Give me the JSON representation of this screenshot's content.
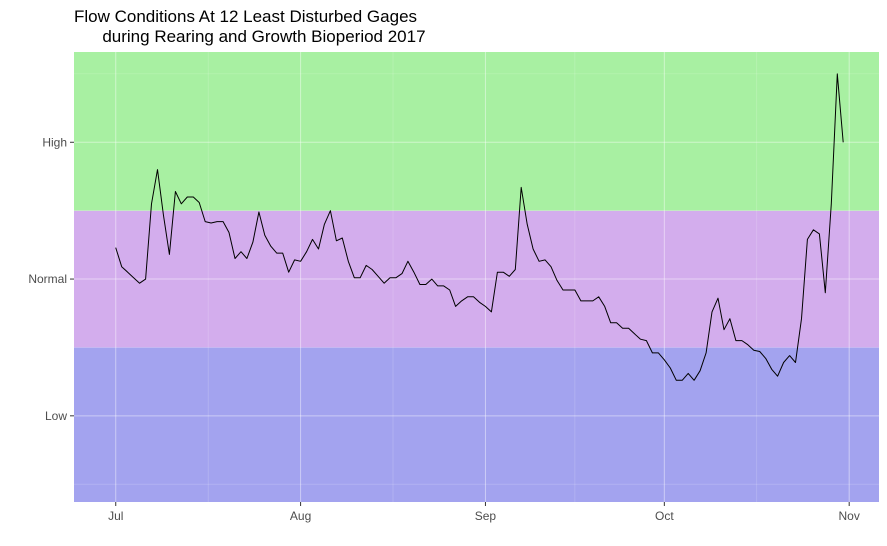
{
  "chart_data": {
    "type": "line",
    "title": "Flow Conditions At 12 Least Disturbed Gages\n      during Rearing and Growth Bioperiod 2017",
    "xlabel": "",
    "ylabel": "",
    "x_ticks": [
      {
        "date": "2017-07-01",
        "label": "Jul"
      },
      {
        "date": "2017-08-01",
        "label": "Aug"
      },
      {
        "date": "2017-09-01",
        "label": "Sep"
      },
      {
        "date": "2017-10-01",
        "label": "Oct"
      },
      {
        "date": "2017-11-01",
        "label": "Nov"
      }
    ],
    "xlim": [
      "2017-06-24",
      "2017-11-06"
    ],
    "y_ticks": [
      {
        "value": 1,
        "label": "Low"
      },
      {
        "value": 2,
        "label": "Normal"
      },
      {
        "value": 3,
        "label": "High"
      }
    ],
    "ylim": [
      0.37,
      3.66
    ],
    "bands": [
      {
        "name": "Low",
        "from": 0.37,
        "to": 1.5,
        "color": "#a3a3ef"
      },
      {
        "name": "Normal",
        "from": 1.5,
        "to": 2.5,
        "color": "#d3aded"
      },
      {
        "name": "High",
        "from": 2.5,
        "to": 3.66,
        "color": "#a8f0a2"
      }
    ],
    "grid": true,
    "line_color": "#000000",
    "series": [
      {
        "x": [
          "2017-07-01",
          "2017-07-02",
          "2017-07-03",
          "2017-07-04",
          "2017-07-05",
          "2017-07-06",
          "2017-07-07",
          "2017-07-08",
          "2017-07-09",
          "2017-07-10",
          "2017-07-11",
          "2017-07-12",
          "2017-07-13",
          "2017-07-14",
          "2017-07-15",
          "2017-07-16",
          "2017-07-17",
          "2017-07-18",
          "2017-07-19",
          "2017-07-20",
          "2017-07-21",
          "2017-07-22",
          "2017-07-23",
          "2017-07-24",
          "2017-07-25",
          "2017-07-26",
          "2017-07-27",
          "2017-07-28",
          "2017-07-29",
          "2017-07-30",
          "2017-07-31",
          "2017-08-01",
          "2017-08-02",
          "2017-08-03",
          "2017-08-04",
          "2017-08-05",
          "2017-08-06",
          "2017-08-07",
          "2017-08-08",
          "2017-08-09",
          "2017-08-10",
          "2017-08-11",
          "2017-08-12",
          "2017-08-13",
          "2017-08-14",
          "2017-08-15",
          "2017-08-16",
          "2017-08-17",
          "2017-08-18",
          "2017-08-19",
          "2017-08-20",
          "2017-08-21",
          "2017-08-22",
          "2017-08-23",
          "2017-08-24",
          "2017-08-25",
          "2017-08-26",
          "2017-08-27",
          "2017-08-28",
          "2017-08-29",
          "2017-08-30",
          "2017-08-31",
          "2017-09-01",
          "2017-09-02",
          "2017-09-03",
          "2017-09-04",
          "2017-09-05",
          "2017-09-06",
          "2017-09-07",
          "2017-09-08",
          "2017-09-09",
          "2017-09-10",
          "2017-09-11",
          "2017-09-12",
          "2017-09-13",
          "2017-09-14",
          "2017-09-15",
          "2017-09-16",
          "2017-09-17",
          "2017-09-18",
          "2017-09-19",
          "2017-09-20",
          "2017-09-21",
          "2017-09-22",
          "2017-09-23",
          "2017-09-24",
          "2017-09-25",
          "2017-09-26",
          "2017-09-27",
          "2017-09-28",
          "2017-09-29",
          "2017-09-30",
          "2017-10-01",
          "2017-10-02",
          "2017-10-03",
          "2017-10-04",
          "2017-10-05",
          "2017-10-06",
          "2017-10-07",
          "2017-10-08",
          "2017-10-09",
          "2017-10-10",
          "2017-10-11",
          "2017-10-12",
          "2017-10-13",
          "2017-10-14",
          "2017-10-15",
          "2017-10-16",
          "2017-10-17",
          "2017-10-18",
          "2017-10-19",
          "2017-10-20",
          "2017-10-21",
          "2017-10-22",
          "2017-10-23",
          "2017-10-24",
          "2017-10-25",
          "2017-10-26",
          "2017-10-27",
          "2017-10-28",
          "2017-10-29",
          "2017-10-30",
          "2017-10-31"
        ],
        "y": [
          2.23,
          2.09,
          2.05,
          2.01,
          1.97,
          2.0,
          2.55,
          2.8,
          2.47,
          2.18,
          2.64,
          2.55,
          2.6,
          2.6,
          2.56,
          2.42,
          2.41,
          2.42,
          2.42,
          2.34,
          2.15,
          2.2,
          2.15,
          2.27,
          2.49,
          2.32,
          2.24,
          2.19,
          2.19,
          2.05,
          2.14,
          2.13,
          2.2,
          2.29,
          2.22,
          2.4,
          2.5,
          2.28,
          2.3,
          2.13,
          2.01,
          2.01,
          2.1,
          2.07,
          2.02,
          1.97,
          2.01,
          2.01,
          2.04,
          2.13,
          2.05,
          1.96,
          1.96,
          2.0,
          1.95,
          1.95,
          1.92,
          1.8,
          1.84,
          1.87,
          1.87,
          1.83,
          1.8,
          1.76,
          2.05,
          2.05,
          2.02,
          2.07,
          2.67,
          2.4,
          2.22,
          2.13,
          2.14,
          2.09,
          1.99,
          1.92,
          1.92,
          1.92,
          1.84,
          1.84,
          1.84,
          1.87,
          1.8,
          1.68,
          1.68,
          1.64,
          1.64,
          1.6,
          1.56,
          1.55,
          1.46,
          1.46,
          1.41,
          1.35,
          1.26,
          1.26,
          1.31,
          1.26,
          1.33,
          1.46,
          1.76,
          1.86,
          1.63,
          1.71,
          1.55,
          1.55,
          1.52,
          1.48,
          1.47,
          1.42,
          1.34,
          1.29,
          1.39,
          1.44,
          1.39,
          1.71,
          2.29,
          2.36,
          2.33,
          1.9,
          2.55,
          3.5,
          3.0
        ]
      }
    ]
  }
}
